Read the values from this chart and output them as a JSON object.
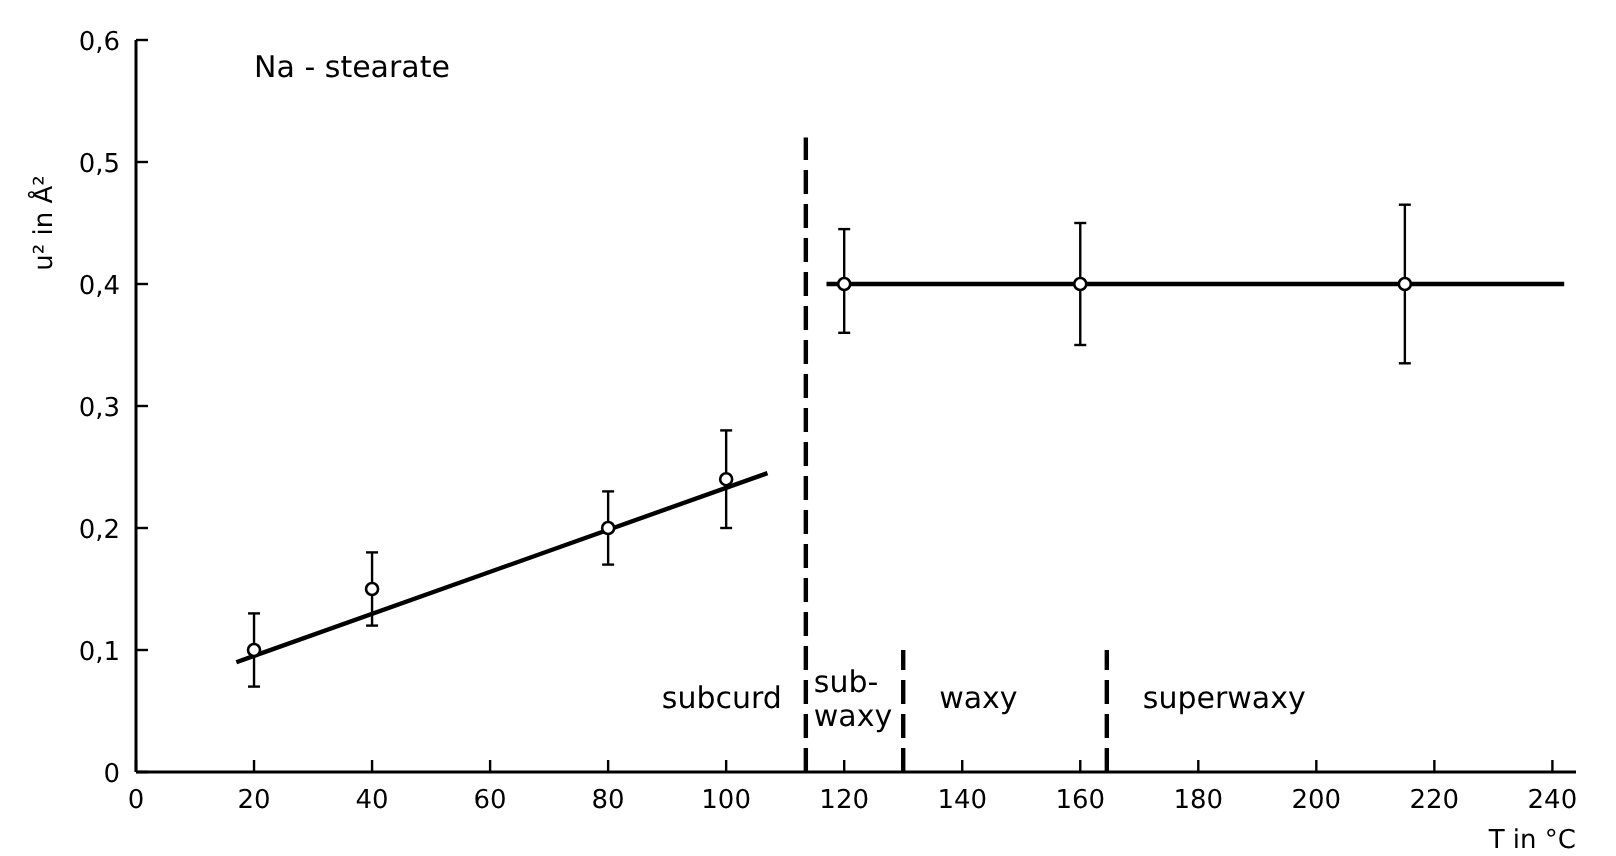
{
  "chart_data": {
    "type": "scatter",
    "title": "Na - stearate",
    "xlabel": "T  in  °C",
    "ylabel": "u² in Å²",
    "xlim": [
      0,
      244
    ],
    "xticks": [
      0,
      20,
      40,
      60,
      80,
      100,
      120,
      140,
      160,
      180,
      200,
      220,
      240
    ],
    "ylim": [
      0,
      0.6
    ],
    "yticks": [
      0,
      {
        "value": 0.1,
        "label": "0,1"
      },
      {
        "value": 0.2,
        "label": "0,2"
      },
      {
        "value": 0.3,
        "label": "0,3"
      },
      {
        "value": 0.4,
        "label": "0,4"
      },
      {
        "value": 0.5,
        "label": "0,5"
      },
      {
        "value": 0.6,
        "label": "0,6"
      }
    ],
    "grid": false,
    "annotations": [
      "subcurd",
      "sub-\nwaxy",
      "waxy",
      "superwaxy"
    ],
    "series": [
      {
        "type": "line",
        "color": "#000000",
        "x": [
          17,
          107
        ],
        "values": [
          0.09,
          0.245
        ],
        "line_style": "solid",
        "marker": "none"
      },
      {
        "type": "line",
        "color": "#000000",
        "x": [
          117,
          242
        ],
        "values": [
          0.4,
          0.4
        ],
        "line_style": "solid",
        "marker": "none"
      },
      {
        "type": "line",
        "color": "#000000",
        "x": [
          113.5,
          113.5
        ],
        "values": [
          0,
          0.52
        ],
        "line_style": "dashed",
        "marker": "none"
      },
      {
        "type": "line",
        "color": "#000000",
        "x": [
          130,
          130
        ],
        "values": [
          0,
          0.1
        ],
        "line_style": "dashed",
        "marker": "none"
      },
      {
        "type": "line",
        "color": "#000000",
        "x": [
          164.5,
          164.5
        ],
        "values": [
          0,
          0.1
        ],
        "line_style": "dashed",
        "marker": "none"
      },
      {
        "color": "#000000",
        "marker": "circle",
        "x": [
          20,
          40,
          80,
          100,
          120,
          160,
          215
        ],
        "values": [
          0.1,
          0.15,
          0.2,
          0.24,
          0.4,
          0.4,
          0.4
        ],
        "errors": [
          [
            0.07,
            0.13
          ],
          [
            0.12,
            0.18
          ],
          [
            0.17,
            0.23
          ],
          [
            0.2,
            0.28
          ],
          [
            0.36,
            0.445
          ],
          [
            0.35,
            0.45
          ],
          [
            0.335,
            0.465
          ]
        ]
      }
    ]
  }
}
